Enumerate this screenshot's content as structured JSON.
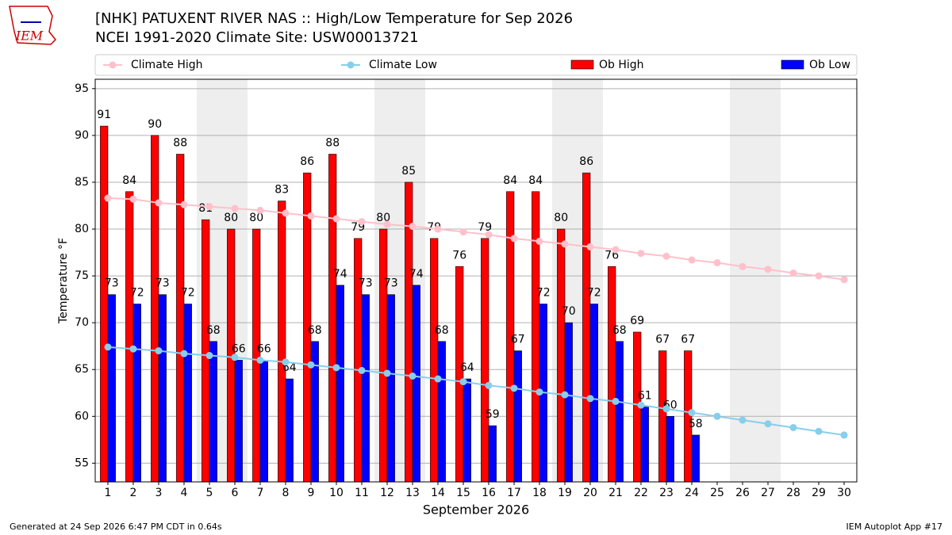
{
  "chart_data": {
    "type": "bar",
    "title": "[NHK] PATUXENT RIVER NAS :: High/Low Temperature for Sep 2026",
    "subtitle": "NCEI 1991-2020 Climate Site: USW00013721",
    "logo_text": "IEM",
    "xlabel": "September 2026",
    "ylabel": "Temperature °F",
    "x": [
      1,
      2,
      3,
      4,
      5,
      6,
      7,
      8,
      9,
      10,
      11,
      12,
      13,
      14,
      15,
      16,
      17,
      18,
      19,
      20,
      21,
      22,
      23,
      24,
      25,
      26,
      27,
      28,
      29,
      30
    ],
    "xlim": [
      0.5,
      30.5
    ],
    "xticks": [
      1,
      2,
      3,
      4,
      5,
      6,
      7,
      8,
      9,
      10,
      11,
      12,
      13,
      14,
      15,
      16,
      17,
      18,
      19,
      20,
      21,
      22,
      23,
      24,
      25,
      26,
      27,
      28,
      29,
      30
    ],
    "ylim": [
      53,
      96
    ],
    "yticks": [
      55,
      60,
      65,
      70,
      75,
      80,
      85,
      90,
      95
    ],
    "grid": true,
    "shaded_spans": [
      [
        4.5,
        6.5
      ],
      [
        11.5,
        13.5
      ],
      [
        18.5,
        20.5
      ],
      [
        25.5,
        27.5
      ]
    ],
    "shade_color": "#eeeeee",
    "series": [
      {
        "name": "Climate High",
        "type": "line",
        "color": "#ffc0cb",
        "values": [
          83.3,
          83.2,
          82.8,
          82.6,
          82.4,
          82.2,
          82.0,
          81.7,
          81.4,
          81.1,
          80.8,
          80.5,
          80.3,
          80.0,
          79.7,
          79.4,
          79.0,
          78.7,
          78.4,
          78.1,
          77.8,
          77.4,
          77.1,
          76.7,
          76.4,
          76.0,
          75.7,
          75.3,
          75.0,
          74.6
        ]
      },
      {
        "name": "Climate Low",
        "type": "line",
        "color": "#87ceeb",
        "values": [
          67.4,
          67.2,
          67.0,
          66.7,
          66.5,
          66.3,
          66.0,
          65.8,
          65.5,
          65.2,
          64.9,
          64.6,
          64.3,
          64.0,
          63.7,
          63.3,
          63.0,
          62.6,
          62.3,
          61.9,
          61.6,
          61.2,
          60.8,
          60.4,
          60.0,
          59.6,
          59.2,
          58.8,
          58.4,
          58.0
        ]
      },
      {
        "name": "Ob High",
        "type": "bar",
        "color": "#ff0000",
        "values": [
          91,
          84,
          90,
          88,
          81,
          80,
          80,
          83,
          86,
          88,
          79,
          80,
          85,
          79,
          76,
          79,
          84,
          84,
          80,
          86,
          76,
          69,
          67,
          67,
          null,
          null,
          null,
          null,
          null,
          null
        ]
      },
      {
        "name": "Ob Low",
        "type": "bar",
        "color": "#0000ff",
        "values": [
          73,
          72,
          73,
          72,
          68,
          66,
          66,
          64,
          68,
          74,
          73,
          73,
          74,
          68,
          64,
          59,
          67,
          72,
          70,
          72,
          68,
          61,
          60,
          58,
          null,
          null,
          null,
          null,
          null,
          null
        ]
      }
    ],
    "footer_left": "Generated at 24 Sep 2026 6:47 PM CDT in 0.64s",
    "footer_right": "IEM Autoplot App #17"
  }
}
